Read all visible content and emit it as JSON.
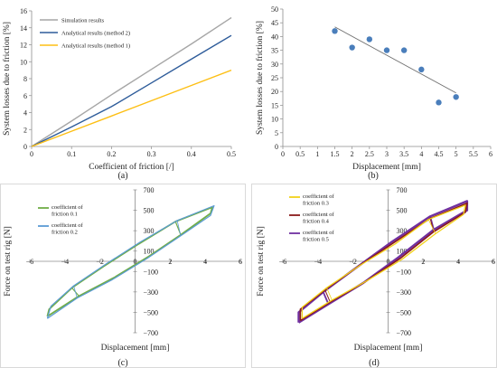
{
  "chart_data": [
    {
      "id": "a",
      "type": "line",
      "caption": "(a)",
      "xlabel": "Coefficient of friction [/]",
      "ylabel": "System losses due to friction [%]",
      "xlim": [
        0,
        0.5
      ],
      "ylim": [
        0,
        16
      ],
      "xticks": [
        0,
        0.1,
        0.2,
        0.3,
        0.4,
        0.5
      ],
      "xtick_labels": [
        "0",
        "0.1",
        "0.2",
        "0.3",
        "0.4",
        "0.5"
      ],
      "yticks": [
        0,
        2,
        4,
        6,
        8,
        10,
        12,
        14,
        16
      ],
      "ytick_labels": [
        "0",
        "2",
        "4",
        "6",
        "8",
        "10",
        "12",
        "14",
        "16"
      ],
      "grid": false,
      "legend_position": "top-left",
      "series": [
        {
          "name": "Simulation results",
          "color": "#a6a6a6",
          "x": [
            0,
            0.1,
            0.2,
            0.3,
            0.4,
            0.5
          ],
          "y": [
            0,
            3.0,
            6.1,
            9.1,
            12.1,
            15.2
          ]
        },
        {
          "name": "Analytical results (method 2)",
          "color": "#2e5c9a",
          "x": [
            0,
            0.1,
            0.2,
            0.3,
            0.4,
            0.5
          ],
          "y": [
            0,
            2.3,
            4.7,
            7.5,
            10.3,
            13.1
          ]
        },
        {
          "name": "Analytical results (method 1)",
          "color": "#fdbf14",
          "x": [
            0,
            0.1,
            0.2,
            0.3,
            0.4,
            0.5
          ],
          "y": [
            0,
            1.8,
            3.6,
            5.4,
            7.2,
            9.0
          ]
        }
      ]
    },
    {
      "id": "b",
      "type": "scatter",
      "caption": "(b)",
      "xlabel": "Displacement [mm]",
      "ylabel": "System losses due to friction [%]",
      "xlim": [
        0,
        6
      ],
      "ylim": [
        0,
        50
      ],
      "xticks": [
        0,
        0.5,
        1,
        1.5,
        2,
        2.5,
        3,
        3.5,
        4,
        4.5,
        5,
        5.5,
        6
      ],
      "xtick_labels": [
        "0",
        "0.5",
        "1",
        "1.5",
        "2",
        "2.5",
        "3",
        "3.5",
        "4",
        "4.5",
        "5",
        "5.5",
        "6"
      ],
      "yticks": [
        0,
        5,
        10,
        15,
        20,
        25,
        30,
        35,
        40,
        45,
        50
      ],
      "ytick_labels": [
        "0",
        "5",
        "10",
        "15",
        "20",
        "25",
        "30",
        "35",
        "40",
        "45",
        "50"
      ],
      "grid": false,
      "points": {
        "color": "#4a7ebb",
        "x": [
          1.5,
          2.0,
          2.5,
          3.0,
          3.5,
          4.0,
          4.5,
          5.0
        ],
        "y": [
          42,
          36,
          39,
          35,
          35,
          28,
          16,
          18
        ]
      },
      "trendline": {
        "color": "#6e6e6e",
        "x": [
          1.5,
          5.0
        ],
        "y": [
          43.5,
          19.5
        ]
      }
    },
    {
      "id": "c",
      "type": "line",
      "caption": "(c)",
      "xlabel": "Displacement [mm]",
      "ylabel": "Force on test rig [N]",
      "xlim": [
        -6,
        6
      ],
      "ylim": [
        -700,
        700
      ],
      "xticks": [
        -6,
        -4,
        -2,
        0,
        2,
        4,
        6
      ],
      "xtick_labels": [
        "−6",
        "−4",
        "−2",
        "0",
        "2",
        "4",
        "6"
      ],
      "yticks": [
        -700,
        -500,
        -300,
        -100,
        100,
        300,
        500,
        700
      ],
      "ytick_labels": [
        "−700",
        "−500",
        "−300",
        "−100",
        "100",
        "300",
        "500",
        "700"
      ],
      "axes_through_origin": true,
      "legend_position": "top-left",
      "series": [
        {
          "name": "coefficient of friction 0.1",
          "color": "#70ad47",
          "width": 1.8,
          "x": [
            -5.0,
            -3.2,
            -1.2,
            0.8,
            2.6,
            4.3,
            4.4,
            2.3,
            0.2,
            -1.8,
            -3.6,
            -4.9,
            -5.0
          ],
          "y": [
            -540,
            -340,
            -160,
            50,
            260,
            470,
            530,
            390,
            170,
            -50,
            -260,
            -470,
            -540
          ]
        },
        {
          "name": "coefficient of friction 0.2",
          "color": "#5b9bd5",
          "width": 1.2,
          "x": [
            -5.0,
            -3.3,
            -1.3,
            0.7,
            2.6,
            4.3,
            4.5,
            2.4,
            0.3,
            -1.6,
            -3.5,
            -4.8,
            -5.0
          ],
          "y": [
            -560,
            -360,
            -180,
            30,
            250,
            450,
            545,
            400,
            190,
            -20,
            -240,
            -440,
            -560
          ]
        }
      ]
    },
    {
      "id": "d",
      "type": "line",
      "caption": "(d)",
      "xlabel": "Displacement [mm]",
      "ylabel": "Force on test rig [N]",
      "xlim": [
        -6,
        6
      ],
      "ylim": [
        -700,
        700
      ],
      "xticks": [
        -6,
        -4,
        -2,
        0,
        2,
        4,
        6
      ],
      "xtick_labels": [
        "−6",
        "−4",
        "−2",
        "0",
        "2",
        "4",
        "6"
      ],
      "yticks": [
        -700,
        -500,
        -300,
        -100,
        100,
        300,
        500,
        700
      ],
      "ytick_labels": [
        "−700",
        "−500",
        "−300",
        "−100",
        "100",
        "300",
        "500",
        "700"
      ],
      "axes_through_origin": true,
      "legend_position": "top-left",
      "series": [
        {
          "name": "coefficient of friction 0.5",
          "color": "#7030a0",
          "width": 2.4,
          "x": [
            -5.1,
            -3.4,
            -1.4,
            0.6,
            2.6,
            4.5,
            4.5,
            2.4,
            0.2,
            -1.8,
            -3.7,
            -5.1,
            -5.1
          ],
          "y": [
            -600,
            -420,
            -210,
            40,
            310,
            500,
            590,
            440,
            190,
            -60,
            -300,
            -500,
            -600
          ]
        },
        {
          "name": "coefficient of friction 0.4",
          "color": "#8b1a1a",
          "width": 1.6,
          "x": [
            -5.0,
            -3.3,
            -1.3,
            0.7,
            2.6,
            4.4,
            4.5,
            2.4,
            0.3,
            -1.7,
            -3.6,
            -5.0,
            -5.0
          ],
          "y": [
            -580,
            -400,
            -200,
            30,
            290,
            480,
            570,
            420,
            180,
            -50,
            -280,
            -470,
            -580
          ]
        },
        {
          "name": "coefficient of friction 0.3",
          "color": "#f2d21a",
          "width": 1.3,
          "x": [
            -4.9,
            -3.2,
            -1.2,
            0.8,
            2.7,
            4.3,
            4.4,
            2.3,
            0.4,
            -1.6,
            -3.5,
            -4.9,
            -4.9
          ],
          "y": [
            -560,
            -380,
            -190,
            20,
            270,
            460,
            550,
            410,
            170,
            -40,
            -260,
            -450,
            -560
          ]
        }
      ]
    }
  ]
}
